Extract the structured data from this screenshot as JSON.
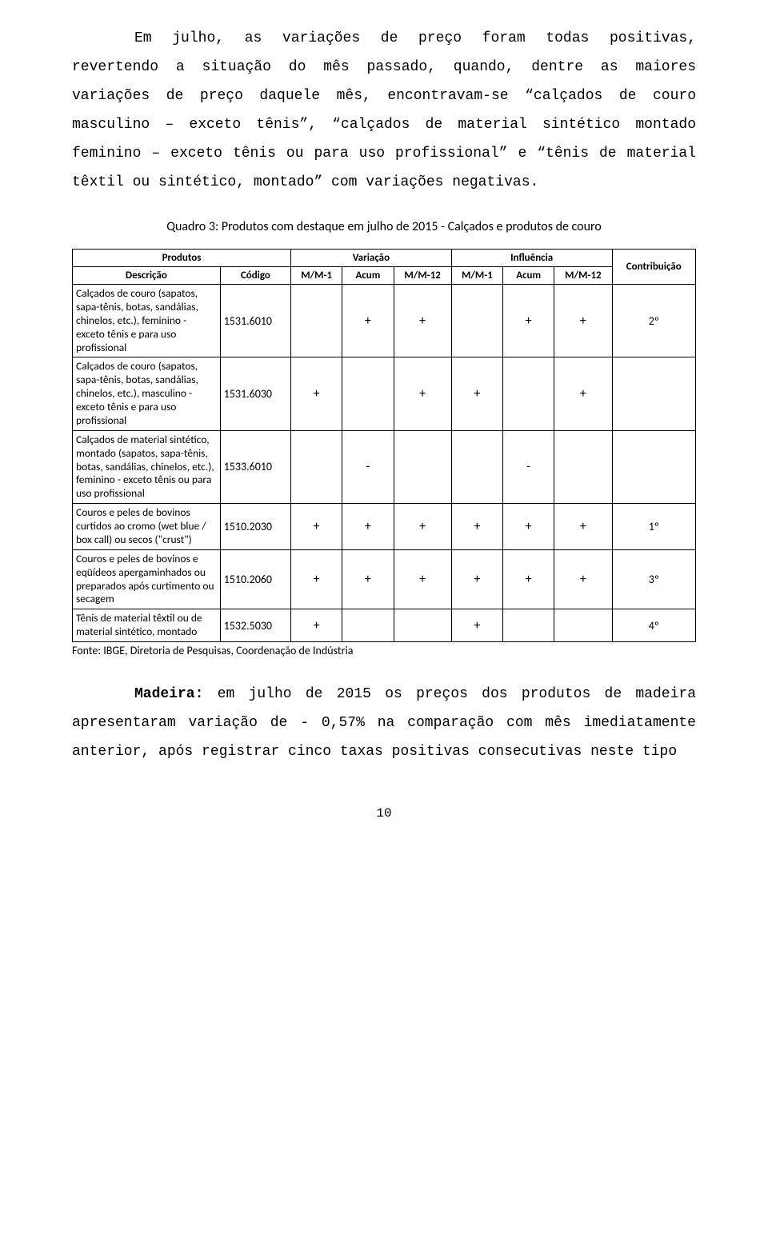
{
  "intro": {
    "text": "Em julho, as variações de preço foram todas positivas, revertendo a situação do mês passado, quando, dentre as maiores variações de preço daquele mês, encontravam-se “calçados de couro masculino – exceto tênis”, “calçados de material sintético montado feminino – exceto tênis ou para uso profissional” e “tênis de material têxtil ou sintético, montado” com variações negativas."
  },
  "quadro": {
    "title": "Quadro 3: Produtos com destaque em julho de 2015 - Calçados e produtos de couro",
    "headers": {
      "produtos": "Produtos",
      "variacao": "Variação",
      "influencia": "Influência",
      "contribuicao": "Contribuição",
      "descricao": "Descrição",
      "codigo": "Código",
      "mm1": "M/M-1",
      "acum": "Acum",
      "mm12": "M/M-12"
    },
    "rows": [
      {
        "desc": "Calçados de couro (sapatos, sapa-tênis, botas, sandálias, chinelos, etc.), feminino - exceto tênis e para uso profissional",
        "codigo": "1531.6010",
        "v_mm1": "",
        "v_acum": "+",
        "v_mm12": "+",
        "i_mm1": "",
        "i_acum": "+",
        "i_mm12": "+",
        "contrib": "2º"
      },
      {
        "desc": "Calçados de couro (sapatos, sapa-tênis, botas, sandálias, chinelos, etc.), masculino - exceto tênis e para uso profissional",
        "codigo": "1531.6030",
        "v_mm1": "+",
        "v_acum": "",
        "v_mm12": "+",
        "i_mm1": "+",
        "i_acum": "",
        "i_mm12": "+",
        "contrib": ""
      },
      {
        "desc": "Calçados de material sintético, montado (sapatos, sapa-tênis, botas, sandálias, chinelos, etc.), feminino - exceto tênis ou para uso profissional",
        "codigo": "1533.6010",
        "v_mm1": "",
        "v_acum": "-",
        "v_mm12": "",
        "i_mm1": "",
        "i_acum": "-",
        "i_mm12": "",
        "contrib": ""
      },
      {
        "desc": "Couros e peles de bovinos curtidos ao cromo (wet blue / box call) ou secos (\"crust\")",
        "codigo": "1510.2030",
        "v_mm1": "+",
        "v_acum": "+",
        "v_mm12": "+",
        "i_mm1": "+",
        "i_acum": "+",
        "i_mm12": "+",
        "contrib": "1º"
      },
      {
        "desc": "Couros e peles de bovinos e eqüídeos apergaminhados ou preparados após curtimento ou secagem",
        "codigo": "1510.2060",
        "v_mm1": "+",
        "v_acum": "+",
        "v_mm12": "+",
        "i_mm1": "+",
        "i_acum": "+",
        "i_mm12": "+",
        "contrib": "3º"
      },
      {
        "desc": "Tênis de material têxtil ou de material sintético, montado",
        "codigo": "1532.5030",
        "v_mm1": "+",
        "v_acum": "",
        "v_mm12": "",
        "i_mm1": "+",
        "i_acum": "",
        "i_mm12": "",
        "contrib": "4º"
      }
    ],
    "fonte": "Fonte: IBGE, Diretoria de Pesquisas, Coordenação de Indústria"
  },
  "body2": {
    "label": "Madeira:",
    "text": " em julho de 2015 os preços dos produtos de madeira apresentaram variação de - 0,57% na comparação com mês imediatamente anterior, após registrar cinco taxas positivas consecutivas neste tipo"
  },
  "page_number": "10"
}
